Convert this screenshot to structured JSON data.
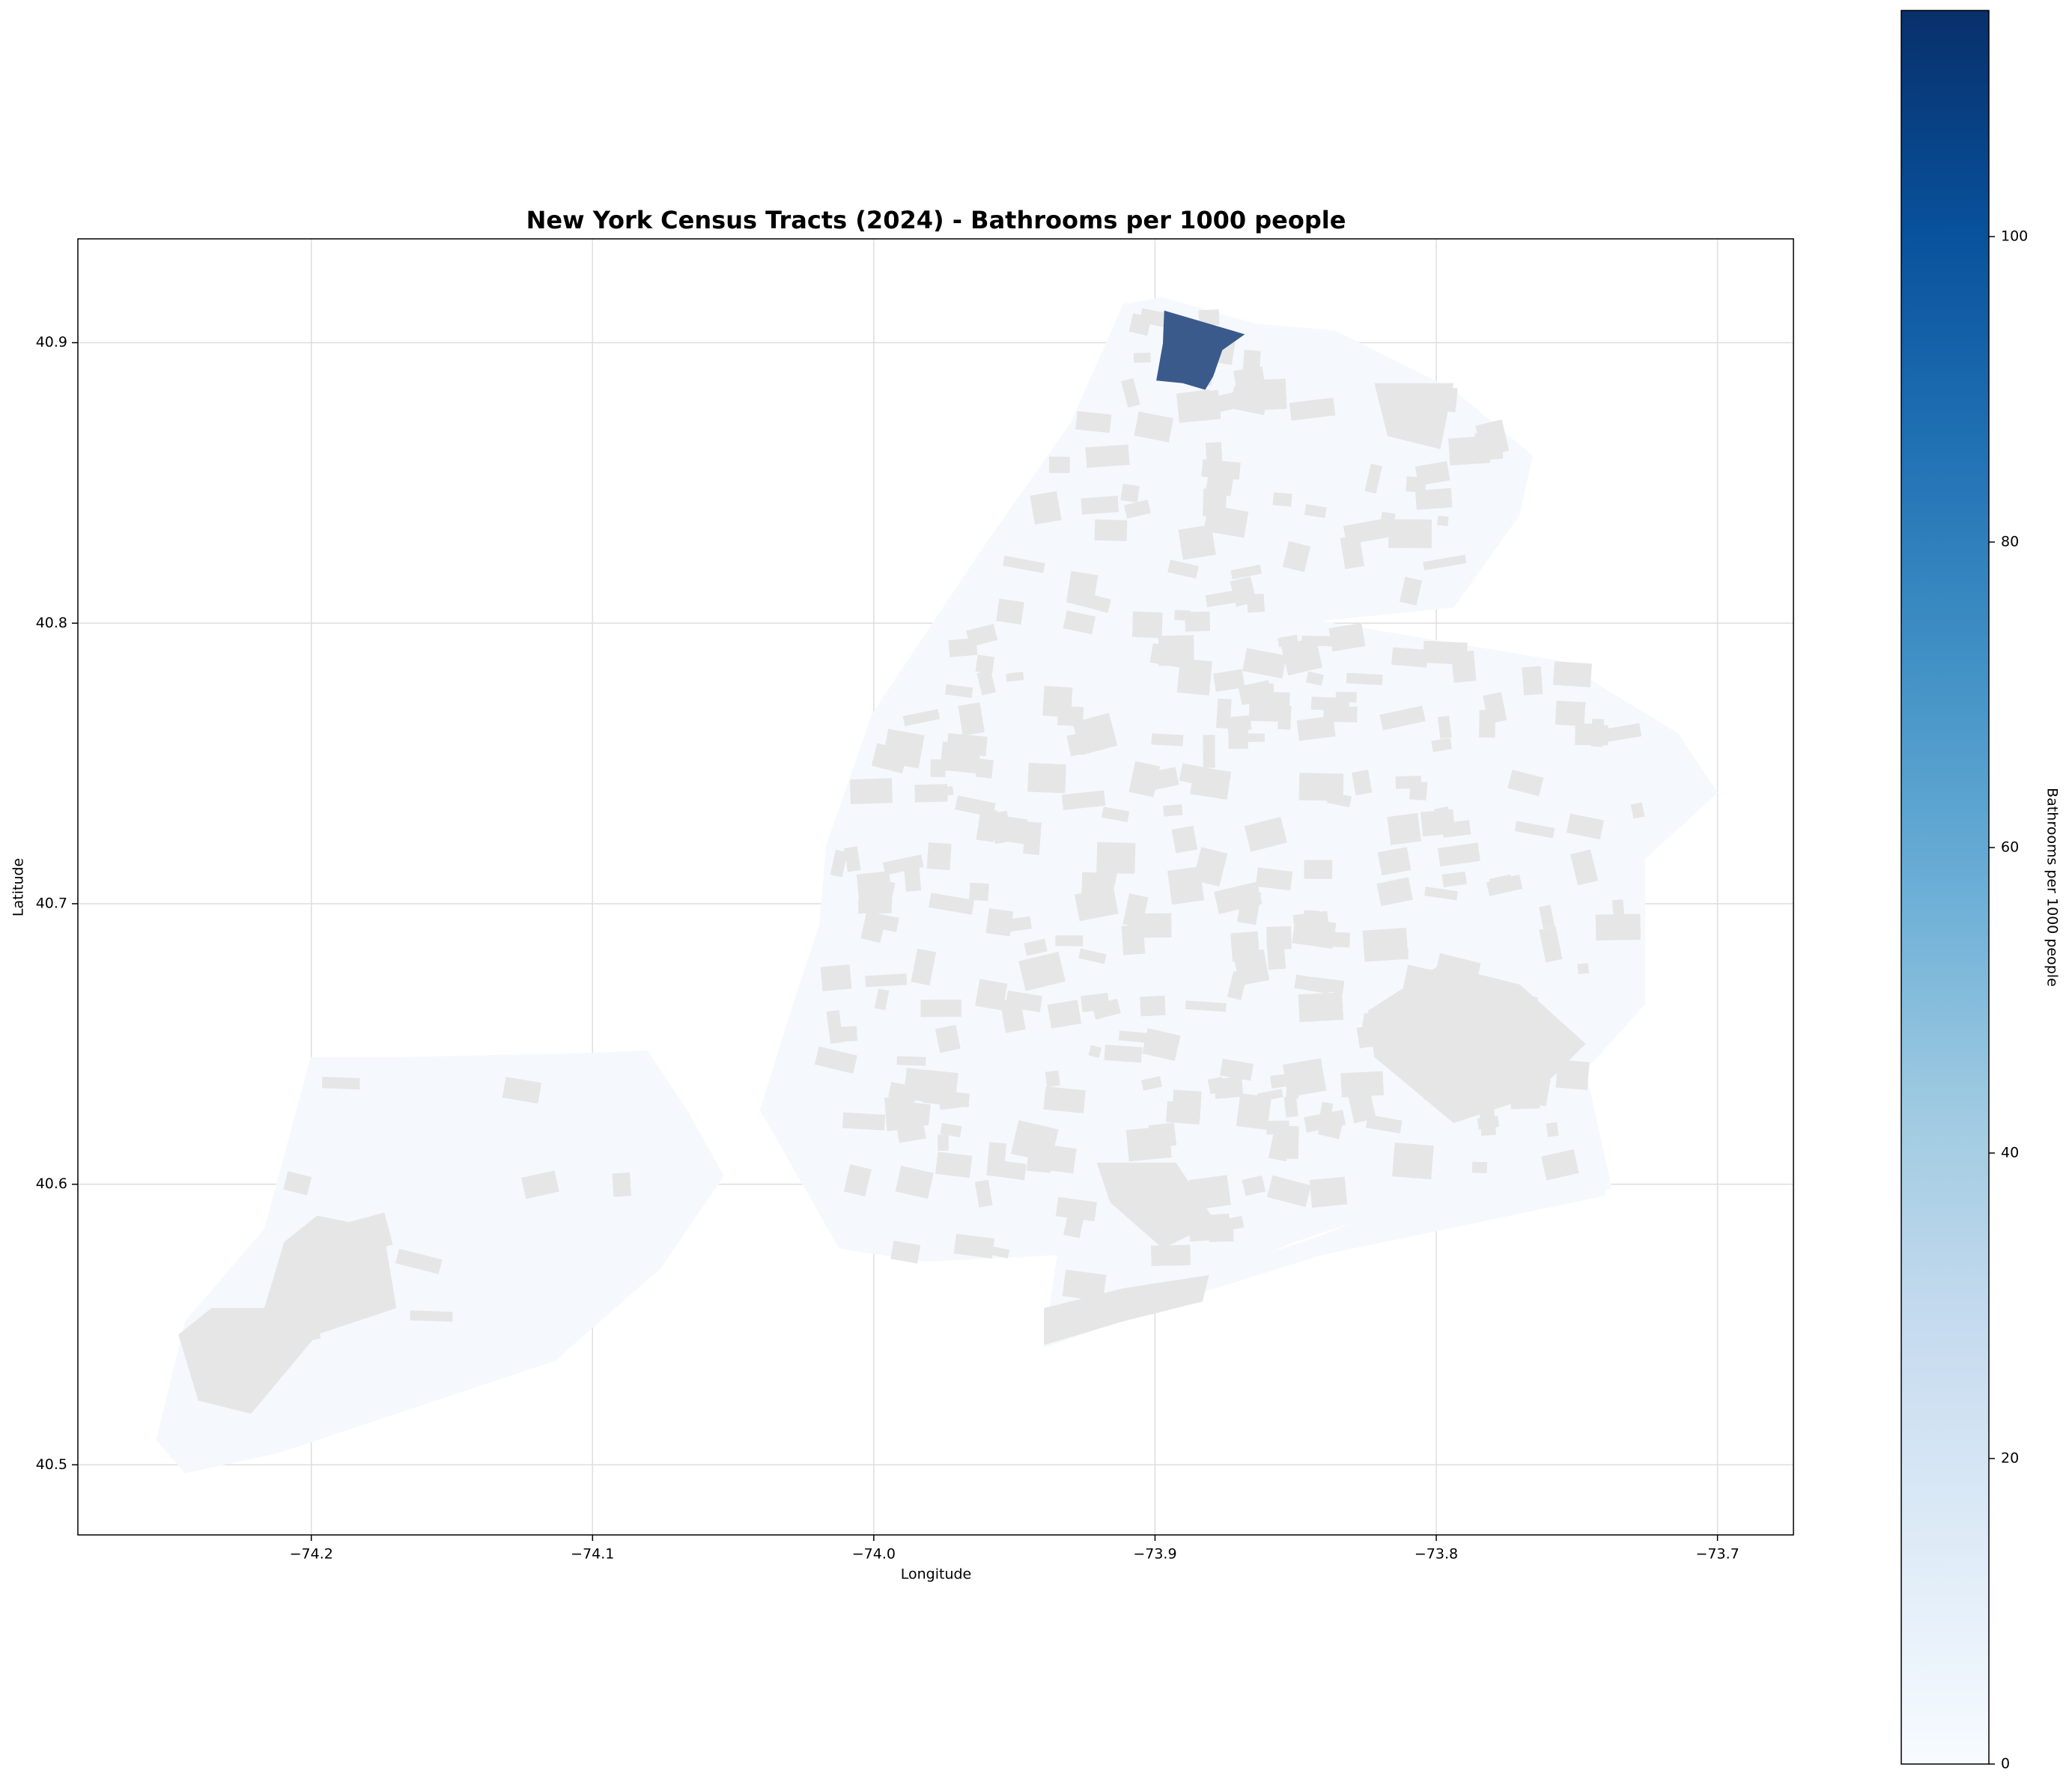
{
  "chart_data": {
    "type": "choropleth",
    "title": "New York Census Tracts (2024) - Bathrooms per 1000 people",
    "x_label": "Longitude",
    "y_label": "Latitude",
    "xlim": [
      -74.283,
      -73.673
    ],
    "ylim": [
      40.475,
      40.937
    ],
    "xticks": [
      {
        "value": -74.2,
        "label": "−74.2"
      },
      {
        "value": -74.1,
        "label": "−74.1"
      },
      {
        "value": -74.0,
        "label": "−74.0"
      },
      {
        "value": -73.9,
        "label": "−73.9"
      },
      {
        "value": -73.8,
        "label": "−73.8"
      },
      {
        "value": -73.7,
        "label": "−73.7"
      }
    ],
    "yticks": [
      40.5,
      40.6,
      40.7,
      40.8,
      40.9
    ],
    "grid": true,
    "colorbar": {
      "label": "Bathrooms per 1000 people",
      "clim": [
        0,
        114.8
      ],
      "ticks": [
        0,
        20,
        40,
        60,
        80,
        100
      ],
      "colors": [
        "#f7fbff",
        "#deebf7",
        "#c6dbef",
        "#9ecae1",
        "#6baed6",
        "#4292c6",
        "#2171b5",
        "#08519c",
        "#08306b"
      ]
    }
  }
}
